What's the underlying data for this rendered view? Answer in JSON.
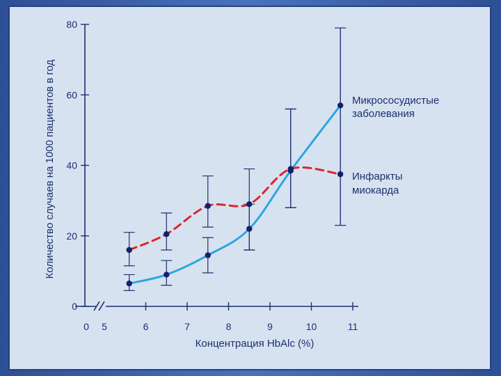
{
  "chart_data": {
    "type": "line",
    "xlabel": "Концентрация HbAlc (%)",
    "ylabel": "Количество случаев на 1000 пациентов в год",
    "xlim": [
      5,
      11
    ],
    "ylim": [
      0,
      80
    ],
    "x_ticks": [
      "0",
      "5",
      "6",
      "7",
      "8",
      "9",
      "10",
      "11"
    ],
    "y_ticks": [
      "0",
      "20",
      "40",
      "60",
      "80"
    ],
    "axis_break": true,
    "grid": false,
    "series": [
      {
        "name": "Микрососудистые заболевания",
        "color": "#2aa7e0",
        "style": "solid",
        "x": [
          5.6,
          6.5,
          7.5,
          8.5,
          9.5,
          10.7
        ],
        "y": [
          6.5,
          9,
          14.5,
          22,
          38.5,
          57
        ],
        "err_low": [
          4.5,
          6,
          9.5,
          16,
          28,
          23
        ],
        "err_high": [
          9,
          13,
          19.5,
          29,
          56,
          79
        ]
      },
      {
        "name": "Инфаркты миокарда",
        "color": "#d8282a",
        "style": "dashed",
        "x": [
          5.6,
          6.5,
          7.5,
          8.5,
          9.5,
          10.7
        ],
        "y": [
          16,
          20.5,
          28.5,
          29,
          39,
          37.5
        ],
        "err_low": [
          11.5,
          16,
          22.5,
          16,
          28,
          23
        ],
        "err_high": [
          21,
          26.5,
          37,
          39,
          56,
          79
        ]
      }
    ],
    "legend": [
      {
        "lines": [
          "Микрососудистые",
          "заболевания"
        ]
      },
      {
        "lines": [
          "Инфаркты",
          "миокарда"
        ]
      }
    ]
  }
}
